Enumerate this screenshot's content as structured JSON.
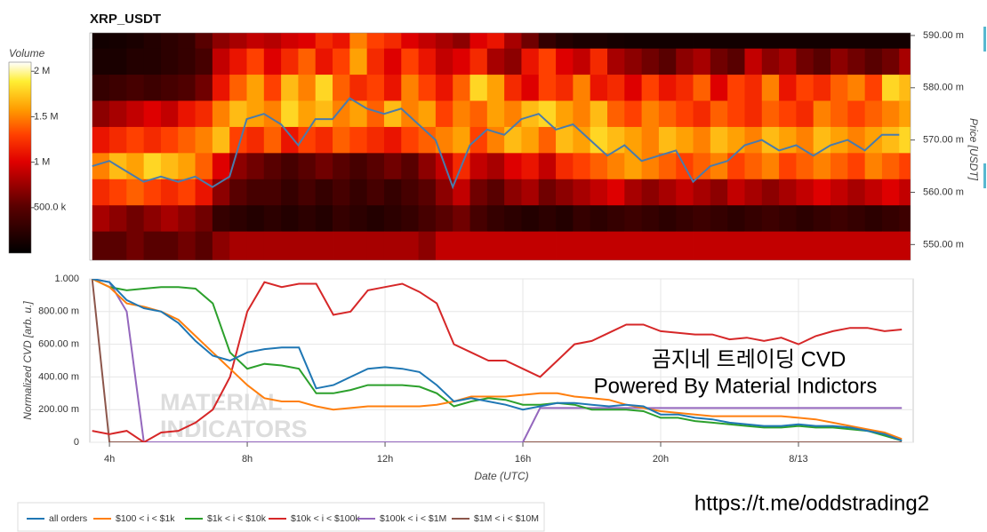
{
  "chart_data": [
    {
      "type": "heatmap",
      "title": "XRP_USDT",
      "colorbar_title": "Volume",
      "ylabel": "Price [USDT]",
      "xlim": [
        3.43,
        27.33
      ],
      "ylim": [
        0.547,
        0.5905
      ],
      "yticks": [
        {
          "value": 0.55,
          "label": "550.00 m"
        },
        {
          "value": 0.56,
          "label": "560.00 m"
        },
        {
          "value": 0.57,
          "label": "570.00 m"
        },
        {
          "value": 0.58,
          "label": "580.00 m"
        },
        {
          "value": 0.59,
          "label": "590.00 m"
        }
      ],
      "zlim": [
        0,
        2100000
      ],
      "zticks": [
        {
          "value": 500000,
          "label": "500.0 k"
        },
        {
          "value": 1000000,
          "label": "1 M"
        },
        {
          "value": 1500000,
          "label": "1.5 M"
        },
        {
          "value": 2000000,
          "label": "2 M"
        }
      ],
      "x_edges": [
        3.5,
        4,
        4.5,
        5,
        5.5,
        6,
        6.5,
        7,
        7.5,
        8,
        8.5,
        9,
        9.5,
        10,
        10.5,
        11,
        11.5,
        12,
        12.5,
        13,
        13.5,
        14,
        14.5,
        15,
        15.5,
        16,
        16.5,
        17,
        17.5,
        18,
        18.5,
        19,
        19.5,
        20,
        20.5,
        21,
        21.5,
        22,
        22.5,
        23,
        23.5,
        24,
        24.5,
        25,
        25.5,
        26,
        26.5,
        27,
        27.5
      ],
      "y_edges": [
        0.5905,
        0.5875,
        0.5825,
        0.5775,
        0.5725,
        0.5675,
        0.5625,
        0.5575,
        0.5525,
        0.547
      ],
      "z": [
        [
          100000,
          120000,
          150000,
          200000,
          250000,
          300000,
          500000,
          700000,
          800000,
          900000,
          850000,
          950000,
          1000000,
          1200000,
          1100000,
          1500000,
          1300000,
          1200000,
          1000000,
          900000,
          800000,
          700000,
          1000000,
          1100000,
          800000,
          600000,
          300000,
          200000,
          150000,
          150000,
          120000,
          100000,
          100000,
          100000,
          100000,
          100000,
          100000,
          100000,
          100000,
          100000,
          100000,
          100000,
          100000,
          100000,
          100000,
          100000,
          100000,
          100000
        ],
        [
          150000,
          150000,
          200000,
          200000,
          250000,
          300000,
          400000,
          900000,
          1100000,
          1300000,
          1000000,
          1200000,
          1400000,
          1100000,
          1300000,
          1600000,
          1200000,
          1000000,
          1300000,
          1100000,
          900000,
          1000000,
          1200000,
          800000,
          700000,
          1100000,
          1300000,
          1000000,
          900000,
          1200000,
          800000,
          700000,
          600000,
          500000,
          700000,
          800000,
          600000,
          500000,
          900000,
          700000,
          800000,
          600000,
          500000,
          700000,
          600000,
          500000,
          600000,
          800000
        ],
        [
          300000,
          350000,
          400000,
          350000,
          400000,
          450000,
          600000,
          1100000,
          1400000,
          1600000,
          1300000,
          1700000,
          1500000,
          1800000,
          1400000,
          1200000,
          1300000,
          1100000,
          1500000,
          1300000,
          1100000,
          1400000,
          1800000,
          1600000,
          1200000,
          1000000,
          1300000,
          1200000,
          1500000,
          1100000,
          1200000,
          1000000,
          1300000,
          1100000,
          1200000,
          1400000,
          1000000,
          1300000,
          1200000,
          1500000,
          1100000,
          1300000,
          1200000,
          1400000,
          1500000,
          1300000,
          1800000,
          1700000
        ],
        [
          700000,
          800000,
          900000,
          1000000,
          900000,
          1100000,
          1200000,
          1500000,
          1700000,
          1600000,
          1500000,
          1800000,
          1600000,
          1700000,
          1500000,
          1600000,
          1400000,
          1700000,
          1500000,
          1600000,
          1300000,
          1500000,
          1400000,
          1600000,
          1500000,
          1700000,
          1800000,
          1600000,
          1500000,
          1700000,
          1400000,
          1300000,
          1500000,
          1400000,
          1300000,
          1200000,
          1400000,
          1300000,
          1200000,
          1400000,
          1300000,
          1200000,
          1500000,
          1400000,
          1300000,
          1400000,
          1500000,
          1600000
        ],
        [
          1100000,
          1200000,
          1300000,
          1200000,
          1300000,
          1400000,
          1500000,
          1700000,
          1300000,
          1200000,
          1400000,
          1100000,
          1300000,
          1200000,
          1400000,
          1300000,
          1200000,
          1100000,
          1300000,
          1400000,
          1500000,
          1600000,
          1300000,
          1500000,
          1700000,
          1600000,
          1400000,
          1700000,
          1600000,
          1800000,
          1700000,
          1600000,
          1500000,
          1700000,
          1600000,
          1500000,
          1700000,
          1600000,
          1500000,
          1700000,
          1600000,
          1500000,
          1700000,
          1600000,
          1500000,
          1600000,
          1700000,
          1800000
        ],
        [
          1500000,
          1700000,
          1600000,
          1800000,
          1700000,
          1600000,
          1400000,
          1000000,
          700000,
          600000,
          500000,
          400000,
          500000,
          600000,
          500000,
          400000,
          500000,
          600000,
          500000,
          700000,
          900000,
          1200000,
          900000,
          800000,
          1000000,
          1100000,
          900000,
          1200000,
          1300000,
          1400000,
          1500000,
          1600000,
          1500000,
          1400000,
          1300000,
          1400000,
          1500000,
          1300000,
          1400000,
          1500000,
          1300000,
          1400000,
          1500000,
          1400000,
          1300000,
          1500000,
          1400000,
          1300000
        ],
        [
          1200000,
          1300000,
          1400000,
          1300000,
          1200000,
          1300000,
          1100000,
          700000,
          500000,
          400000,
          400000,
          300000,
          400000,
          300000,
          400000,
          300000,
          400000,
          300000,
          400000,
          500000,
          700000,
          900000,
          600000,
          500000,
          700000,
          800000,
          600000,
          700000,
          800000,
          900000,
          1000000,
          800000,
          700000,
          800000,
          900000,
          800000,
          700000,
          900000,
          800000,
          700000,
          800000,
          900000,
          1000000,
          900000,
          800000,
          900000,
          1000000,
          900000
        ],
        [
          800000,
          700000,
          600000,
          700000,
          800000,
          700000,
          600000,
          300000,
          250000,
          200000,
          250000,
          200000,
          250000,
          200000,
          300000,
          250000,
          200000,
          250000,
          300000,
          400000,
          500000,
          600000,
          400000,
          300000,
          250000,
          200000,
          250000,
          200000,
          300000,
          250000,
          300000,
          350000,
          300000,
          250000,
          300000,
          350000,
          300000,
          250000,
          300000,
          350000,
          300000,
          250000,
          300000,
          350000,
          300000,
          250000,
          300000,
          350000
        ],
        [
          500000,
          500000,
          600000,
          500000,
          500000,
          600000,
          500000,
          700000,
          800000,
          800000,
          800000,
          800000,
          800000,
          800000,
          800000,
          800000,
          800000,
          800000,
          800000,
          700000,
          900000,
          900000,
          900000,
          900000,
          900000,
          900000,
          900000,
          900000,
          900000,
          900000,
          900000,
          900000,
          900000,
          900000,
          900000,
          900000,
          900000,
          900000,
          900000,
          900000,
          900000,
          900000,
          900000,
          900000,
          900000,
          900000,
          900000,
          900000
        ]
      ],
      "line": {
        "color": "#4a7bab",
        "x": [
          3.5,
          4,
          4.5,
          5,
          5.5,
          6,
          6.5,
          7,
          7.5,
          8,
          8.5,
          9,
          9.5,
          10,
          10.5,
          11,
          11.5,
          12,
          12.5,
          13,
          13.5,
          14,
          14.5,
          15,
          15.5,
          16,
          16.5,
          17,
          17.5,
          18,
          18.5,
          19,
          19.5,
          20,
          20.5,
          21,
          21.5,
          22,
          22.5,
          23,
          23.5,
          24,
          24.5,
          25,
          25.5,
          26,
          26.5,
          27
        ],
        "values": [
          0.565,
          0.566,
          0.564,
          0.562,
          0.563,
          0.562,
          0.563,
          0.561,
          0.563,
          0.574,
          0.575,
          0.573,
          0.569,
          0.574,
          0.574,
          0.578,
          0.576,
          0.575,
          0.576,
          0.573,
          0.57,
          0.561,
          0.569,
          0.572,
          0.571,
          0.574,
          0.575,
          0.572,
          0.573,
          0.57,
          0.567,
          0.569,
          0.566,
          0.567,
          0.568,
          0.562,
          0.565,
          0.566,
          0.569,
          0.57,
          0.568,
          0.569,
          0.567,
          0.569,
          0.57,
          0.568,
          0.571,
          0.571
        ]
      }
    },
    {
      "type": "line",
      "xlabel": "Date (UTC)",
      "ylabel": "Normalized CVD [arb. u.]",
      "grid": true,
      "xlim": [
        3.43,
        27.33
      ],
      "xticks": [
        {
          "value": 4,
          "label": "4h"
        },
        {
          "value": 8,
          "label": "8h"
        },
        {
          "value": 12,
          "label": "12h"
        },
        {
          "value": 16,
          "label": "16h"
        },
        {
          "value": 20,
          "label": "20h"
        },
        {
          "value": 24,
          "label": "8/13"
        }
      ],
      "ylim": [
        0,
        1
      ],
      "yticks": [
        0,
        {
          "value": 0.2,
          "label": "200.00 m"
        },
        {
          "value": 0.4,
          "label": "400.00 m"
        },
        {
          "value": 0.6,
          "label": "600.00 m"
        },
        {
          "value": 0.8,
          "label": "800.00 m"
        },
        {
          "value": 1,
          "label": "1.000"
        }
      ],
      "x": [
        3.5,
        4,
        4.5,
        5,
        5.5,
        6,
        6.5,
        7,
        7.5,
        8,
        8.5,
        9,
        9.5,
        10,
        10.5,
        11,
        11.5,
        12,
        12.5,
        13,
        13.5,
        14,
        14.5,
        15,
        15.5,
        16,
        16.5,
        17,
        17.5,
        18,
        18.5,
        19,
        19.5,
        20,
        20.5,
        21,
        21.5,
        22,
        22.5,
        23,
        23.5,
        24,
        24.5,
        25,
        25.5,
        26,
        26.5,
        27
      ],
      "series": [
        {
          "name": "all orders",
          "color": "#1f77b4",
          "values": [
            1,
            0.98,
            0.87,
            0.82,
            0.8,
            0.73,
            0.62,
            0.53,
            0.5,
            0.55,
            0.57,
            0.58,
            0.58,
            0.33,
            0.35,
            0.4,
            0.45,
            0.46,
            0.45,
            0.43,
            0.35,
            0.25,
            0.27,
            0.25,
            0.23,
            0.2,
            0.22,
            0.24,
            0.24,
            0.23,
            0.22,
            0.23,
            0.22,
            0.17,
            0.17,
            0.15,
            0.14,
            0.12,
            0.11,
            0.1,
            0.1,
            0.11,
            0.1,
            0.1,
            0.09,
            0.07,
            0.05,
            0.01
          ]
        },
        {
          "name": "$100 < i < $1k",
          "color": "#ff7f0e",
          "values": [
            1,
            0.95,
            0.85,
            0.83,
            0.8,
            0.75,
            0.65,
            0.55,
            0.45,
            0.35,
            0.27,
            0.25,
            0.25,
            0.22,
            0.2,
            0.21,
            0.22,
            0.22,
            0.22,
            0.22,
            0.23,
            0.25,
            0.28,
            0.28,
            0.28,
            0.29,
            0.3,
            0.3,
            0.28,
            0.27,
            0.26,
            0.23,
            0.21,
            0.19,
            0.18,
            0.17,
            0.16,
            0.16,
            0.16,
            0.16,
            0.16,
            0.15,
            0.14,
            0.12,
            0.1,
            0.08,
            0.06,
            0.02
          ]
        },
        {
          "name": "$1k < i < $10k",
          "color": "#2ca02c",
          "values": [
            1,
            0.95,
            0.93,
            0.94,
            0.95,
            0.95,
            0.94,
            0.85,
            0.55,
            0.45,
            0.48,
            0.47,
            0.45,
            0.3,
            0.3,
            0.32,
            0.35,
            0.35,
            0.35,
            0.34,
            0.3,
            0.22,
            0.25,
            0.27,
            0.26,
            0.23,
            0.23,
            0.24,
            0.23,
            0.2,
            0.2,
            0.2,
            0.19,
            0.15,
            0.15,
            0.13,
            0.12,
            0.11,
            0.1,
            0.09,
            0.09,
            0.1,
            0.09,
            0.09,
            0.08,
            0.07,
            0.04,
            0.01
          ]
        },
        {
          "name": "$10k < i < $100k",
          "color": "#d62728",
          "values": [
            0.07,
            0.05,
            0.07,
            0,
            0.06,
            0.07,
            0.12,
            0.2,
            0.4,
            0.8,
            0.98,
            0.95,
            0.97,
            0.97,
            0.78,
            0.8,
            0.93,
            0.95,
            0.97,
            0.92,
            0.85,
            0.6,
            0.55,
            0.5,
            0.5,
            0.45,
            0.4,
            0.5,
            0.6,
            0.62,
            0.67,
            0.72,
            0.72,
            0.68,
            0.67,
            0.66,
            0.66,
            0.63,
            0.64,
            0.62,
            0.64,
            0.6,
            0.65,
            0.68,
            0.7,
            0.7,
            0.68,
            0.69
          ]
        },
        {
          "name": "$100k < i < $1M",
          "color": "#9467bd",
          "values": [
            1,
            0.98,
            0.8,
            0,
            0,
            0,
            0,
            0,
            0,
            0,
            0,
            0,
            0,
            0,
            0,
            0,
            0,
            0,
            0,
            0,
            0,
            0,
            0,
            0,
            0,
            0,
            0.21,
            0.21,
            0.21,
            0.21,
            0.21,
            0.21,
            0.21,
            0.21,
            0.21,
            0.21,
            0.21,
            0.21,
            0.21,
            0.21,
            0.21,
            0.21,
            0.21,
            0.21,
            0.21,
            0.21,
            0.21,
            0.21
          ]
        },
        {
          "name": "$1M < i < $10M",
          "color": "#8c564b",
          "values": [
            1,
            0,
            0,
            0,
            0,
            0,
            0,
            0,
            0,
            0,
            0,
            0,
            0,
            0,
            0,
            0,
            0,
            0,
            0,
            0,
            0,
            0,
            0,
            0,
            0,
            0,
            0,
            0,
            0,
            0,
            0,
            0,
            0,
            0,
            0,
            0,
            0,
            0,
            0,
            0,
            0,
            0,
            0,
            0,
            0,
            0,
            0,
            0
          ]
        }
      ]
    }
  ],
  "overlay": {
    "caption": "곰지네 트레이딩 CVD",
    "powered": "Powered By Material Indictors",
    "url": "https://t.me/oddstrading2",
    "watermark": [
      "MATERIAL",
      "INDICATORS"
    ]
  }
}
